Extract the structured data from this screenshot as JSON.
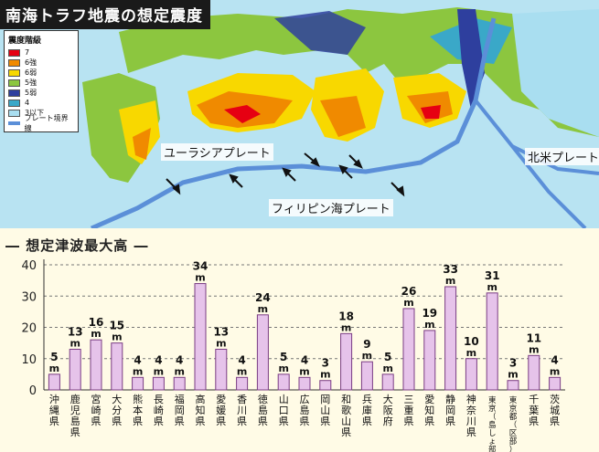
{
  "map": {
    "title": "南海トラフ地震の想定震度",
    "legend": {
      "title": "震度階級",
      "items": [
        {
          "label": "7",
          "color": "#e60012"
        },
        {
          "label": "6強",
          "color": "#f08a00"
        },
        {
          "label": "6弱",
          "color": "#f8d800"
        },
        {
          "label": "5強",
          "color": "#8cc63f"
        },
        {
          "label": "5弱",
          "color": "#2e3f9e"
        },
        {
          "label": "4",
          "color": "#3aa8c8"
        },
        {
          "label": "3以下",
          "color": "#a9def0"
        }
      ],
      "plate_boundary_label": "プレート境界線",
      "plate_boundary_color": "#5b8fd8"
    },
    "plates": {
      "eurasian": "ユーラシアプレート",
      "philippine": "フィリピン海プレート",
      "north_american": "北米プレート"
    }
  },
  "chart_data": {
    "type": "bar",
    "title": "想定津波最大高",
    "categories": [
      "沖縄県",
      "鹿児島県",
      "宮崎県",
      "大分県",
      "熊本県",
      "長崎県",
      "福岡県",
      "高知県",
      "愛媛県",
      "香川県",
      "徳島県",
      "山口県",
      "広島県",
      "岡山県",
      "和歌山県",
      "兵庫県",
      "大阪府",
      "三重県",
      "愛知県",
      "静岡県",
      "神奈川県",
      "東京（島しょ部）",
      "東京都（区部）",
      "千葉県",
      "茨城県"
    ],
    "values": [
      5,
      13,
      16,
      15,
      4,
      4,
      4,
      34,
      13,
      4,
      24,
      5,
      4,
      3,
      18,
      9,
      5,
      26,
      19,
      33,
      10,
      31,
      3,
      11,
      4
    ],
    "unit": "m",
    "ylim": [
      0,
      40
    ],
    "yticks": [
      0,
      10,
      20,
      30,
      40
    ],
    "grid": true,
    "bar_color": "#e6c3ea"
  }
}
